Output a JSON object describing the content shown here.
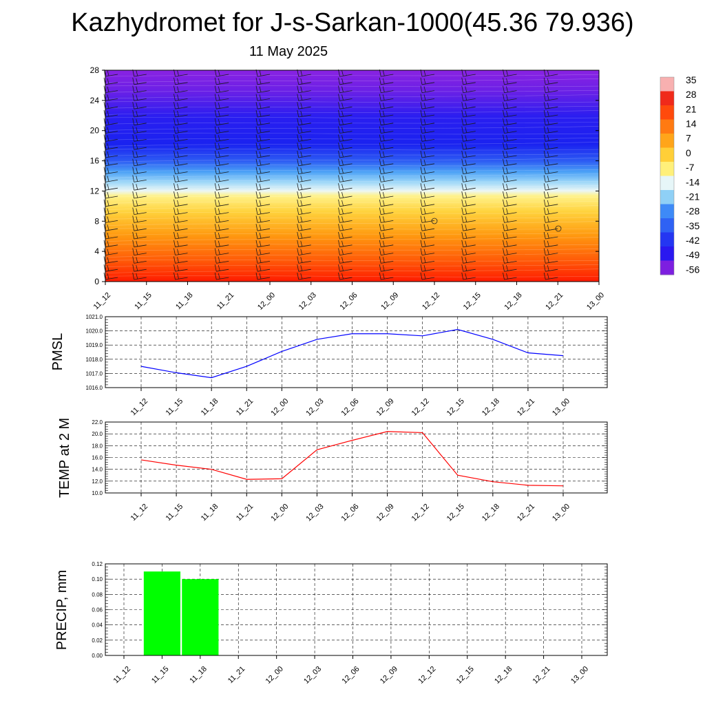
{
  "title": "Kazhydromet for J-s-Sarkan-1000(45.36 79.936)",
  "subtitle": "11 May 2025",
  "chart_data": [
    {
      "type": "heatmap",
      "name": "temperature-wind-cross-section",
      "x_tick_labels": [
        "11_12",
        "11_15",
        "11_18",
        "11_21",
        "12_00",
        "12_03",
        "12_06",
        "12_09",
        "12_12",
        "12_15",
        "12_18",
        "12_21",
        "13_00"
      ],
      "y_tick_labels": [
        "0",
        "4",
        "8",
        "12",
        "16",
        "20",
        "24",
        "28"
      ],
      "ylim": [
        0,
        28
      ],
      "colorbar": {
        "labels": [
          "35",
          "28",
          "21",
          "14",
          "7",
          "0",
          "-7",
          "-14",
          "-21",
          "-28",
          "-35",
          "-42",
          "-49",
          "-56"
        ],
        "colors": [
          "#7d1fe0",
          "#2a16f0",
          "#1f4cf7",
          "#3e8af7",
          "#8fd0f6",
          "#f2f3e6",
          "#fff07a",
          "#ffd23c",
          "#ffb21e",
          "#ff8f14",
          "#ff6a0e",
          "#ff4a09",
          "#ff2e06",
          "#f21a04"
        ]
      },
      "value_range": [
        -56,
        35
      ],
      "wind_barbs": true
    },
    {
      "type": "line",
      "name": "PMSL",
      "ylabel": "PMSL",
      "categories": [
        "11_12",
        "11_15",
        "11_18",
        "11_21",
        "12_00",
        "12_03",
        "12_06",
        "12_09",
        "12_12",
        "12_15",
        "12_18",
        "12_21",
        "13_00"
      ],
      "values": [
        1017.5,
        1017.05,
        1016.7,
        1017.5,
        1018.55,
        1019.4,
        1019.8,
        1019.8,
        1019.65,
        1020.1,
        1019.4,
        1018.45,
        1018.25
      ],
      "ylim": [
        1016.0,
        1021.0
      ],
      "y_tick_labels": [
        "1016.0",
        "1017.0",
        "1018.0",
        "1019.0",
        "1020.0",
        "1021.0"
      ],
      "color": "#0000ff",
      "grid": true
    },
    {
      "type": "line",
      "name": "TEMP at 2 M",
      "ylabel": "TEMP at 2 M",
      "categories": [
        "11_12",
        "11_15",
        "11_18",
        "11_21",
        "12_00",
        "12_03",
        "12_06",
        "12_09",
        "12_12",
        "12_15",
        "12_18",
        "12_21",
        "13_00"
      ],
      "values": [
        15.6,
        14.7,
        14.0,
        12.3,
        12.4,
        17.3,
        18.9,
        20.4,
        20.2,
        13.0,
        11.9,
        11.3,
        11.2
      ],
      "ylim": [
        10.0,
        22.0
      ],
      "y_tick_labels": [
        "10.0",
        "12.0",
        "14.0",
        "16.0",
        "18.0",
        "20.0",
        "22.0"
      ],
      "color": "#ff0000",
      "grid": true
    },
    {
      "type": "bar",
      "name": "PRECIP, mm",
      "ylabel": "PRECIP, mm",
      "categories": [
        "11_12",
        "11_15",
        "11_18",
        "11_21",
        "12_00",
        "12_03",
        "12_06",
        "12_09",
        "12_12",
        "12_15",
        "12_18",
        "12_21",
        "13_00"
      ],
      "values": [
        0,
        0.11,
        0.1,
        0,
        0,
        0,
        0,
        0,
        0,
        0,
        0,
        0,
        0
      ],
      "ylim": [
        0,
        0.12
      ],
      "y_tick_labels": [
        "0.00",
        "0.02",
        "0.04",
        "0.06",
        "0.08",
        "0.10",
        "0.12"
      ],
      "color": "#00ff00",
      "grid": true
    }
  ]
}
